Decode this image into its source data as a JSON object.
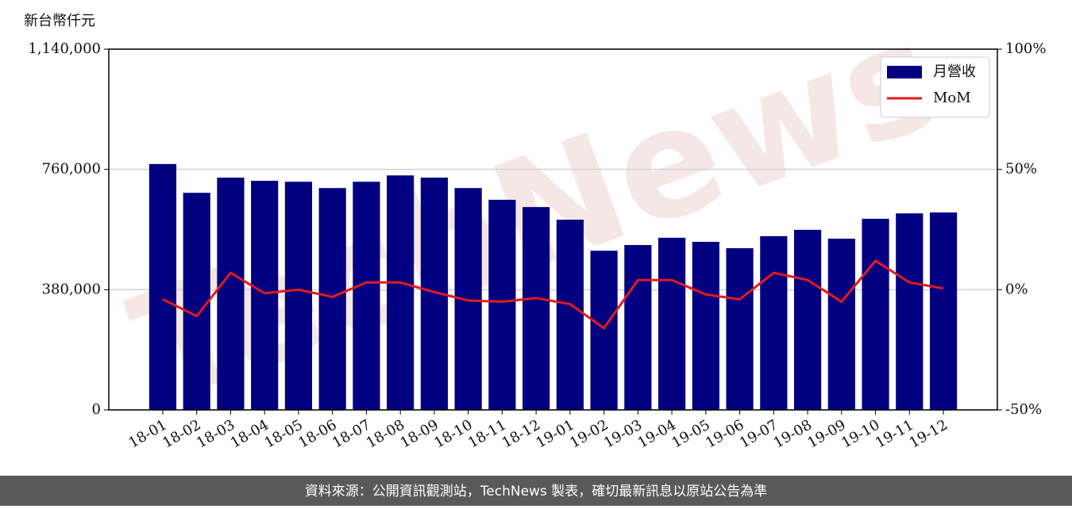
{
  "chart_data": {
    "type": "bar_line",
    "ylabel": "新台幣仟元",
    "watermark": "TechNews",
    "footer": "資料來源：公開資訊觀測站，TechNews 製表，確切最新訊息以原站公告為準",
    "categories": [
      "18-01",
      "18-02",
      "18-03",
      "18-04",
      "18-05",
      "18-06",
      "18-07",
      "18-08",
      "18-09",
      "18-10",
      "18-11",
      "18-12",
      "19-01",
      "19-02",
      "19-03",
      "19-04",
      "19-05",
      "19-06",
      "19-07",
      "19-08",
      "19-09",
      "19-10",
      "19-11",
      "19-12"
    ],
    "series": [
      {
        "name": "月營收",
        "type": "bar",
        "color": "#000080",
        "values": [
          777000,
          686000,
          734000,
          724000,
          721000,
          701000,
          721000,
          741000,
          734000,
          701000,
          664000,
          641000,
          601000,
          503000,
          521000,
          544000,
          531000,
          511000,
          549000,
          569000,
          541000,
          604000,
          621000,
          624000
        ]
      },
      {
        "name": "MoM",
        "type": "line",
        "axis": "y2",
        "color": "#e31a1c",
        "values": [
          -4,
          -11,
          7,
          -1.5,
          0,
          -3,
          3,
          3,
          -1,
          -4.5,
          -5,
          -3.5,
          -6,
          -16,
          4,
          4,
          -2,
          -4,
          7,
          4,
          -5,
          12,
          3,
          0.5
        ]
      }
    ],
    "ylim": [
      0,
      1140000
    ],
    "yticks": [
      {
        "value": 0,
        "label": "0"
      },
      {
        "value": 380000,
        "label": "380,000"
      },
      {
        "value": 760000,
        "label": "760,000"
      },
      {
        "value": 1140000,
        "label": "1,140,000"
      }
    ],
    "y2lim": [
      -50,
      100
    ],
    "y2ticks": [
      {
        "value": -50,
        "label": "-50%"
      },
      {
        "value": 0,
        "label": "0%"
      },
      {
        "value": 50,
        "label": "50%"
      },
      {
        "value": 100,
        "label": "100%"
      }
    ],
    "grid": true,
    "legend": "upper right"
  }
}
